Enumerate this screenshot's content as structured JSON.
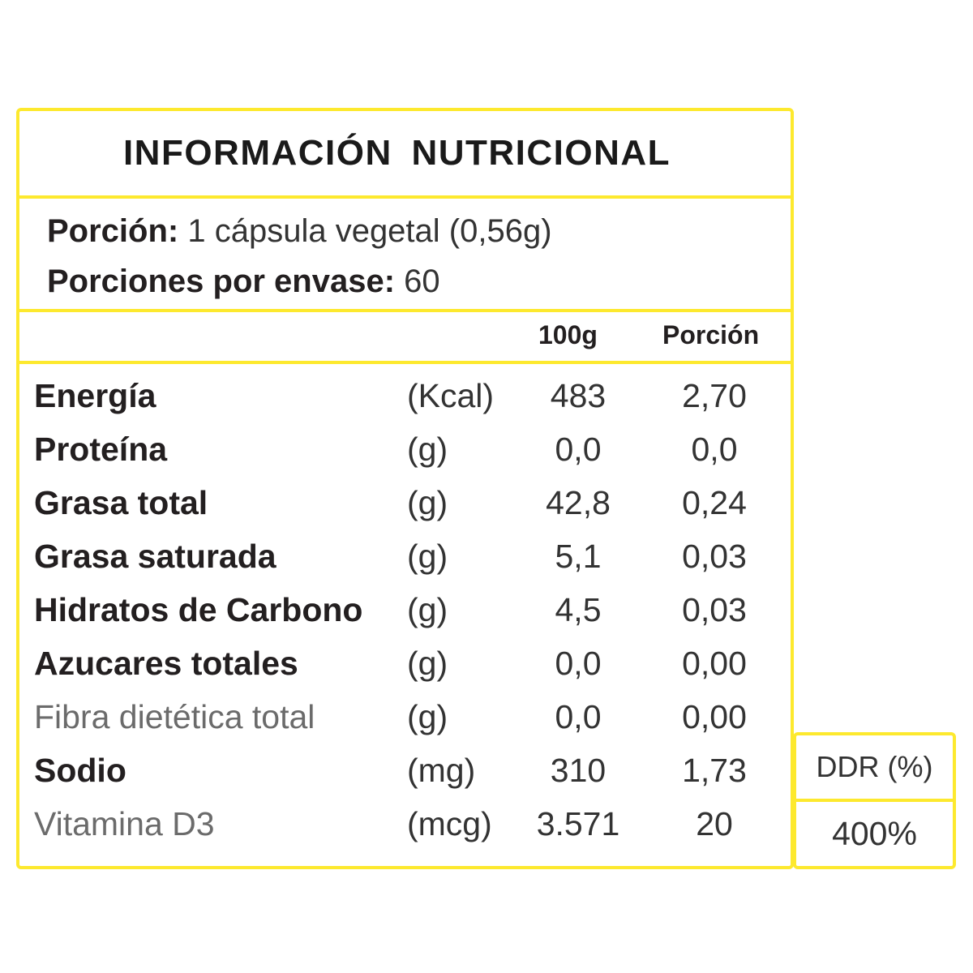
{
  "label": {
    "title": "INFORMACIÓN NUTRICIONAL",
    "serving": {
      "portion_label": "Porción:",
      "portion_value": " 1 cápsula vegetal (0,56g)",
      "servings_label": "Porciones por envase:",
      "servings_value": " 60"
    },
    "columns": {
      "per_100g": "100g",
      "per_portion": "Porción"
    },
    "rows": [
      {
        "name": "Energía",
        "unit": "(Kcal)",
        "per_100g": "483",
        "per_portion": "2,70"
      },
      {
        "name": "Proteína",
        "unit": "(g)",
        "per_100g": "0,0",
        "per_portion": "0,0"
      },
      {
        "name": "Grasa total",
        "unit": "(g)",
        "per_100g": "42,8",
        "per_portion": "0,24"
      },
      {
        "name": "Grasa saturada",
        "unit": "(g)",
        "per_100g": "5,1",
        "per_portion": "0,03"
      },
      {
        "name": "Hidratos de Carbono",
        "unit": "(g)",
        "per_100g": "4,5",
        "per_portion": "0,03"
      },
      {
        "name": "Azucares totales",
        "unit": "(g)",
        "per_100g": "0,0",
        "per_portion": "0,00"
      },
      {
        "name": "Fibra dietética total",
        "unit": "(g)",
        "per_100g": "0,0",
        "per_portion": "0,00"
      },
      {
        "name": "Sodio",
        "unit": "(mg)",
        "per_100g": "310",
        "per_portion": "1,73"
      },
      {
        "name": "Vitamina D3",
        "unit": "(mcg)",
        "per_100g": "3.571",
        "per_portion": "20"
      }
    ],
    "ddr": {
      "header": "DDR (%)",
      "value": "400%"
    }
  },
  "colors": {
    "border": "#fde92e",
    "text": "#231f20"
  }
}
